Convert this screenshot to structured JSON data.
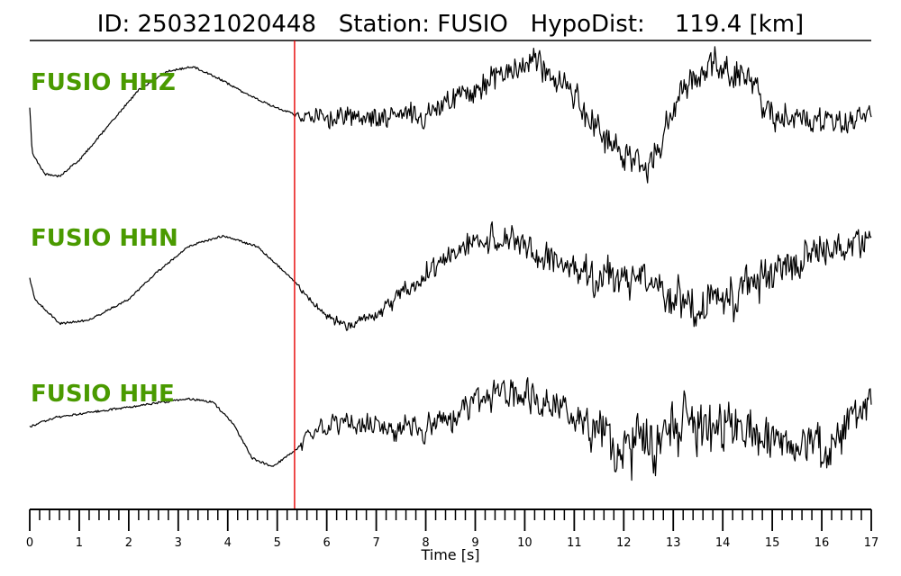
{
  "chart_data": {
    "type": "line",
    "title": "ID: 250321020448   Station: FUSIO   HypoDist:    119.4 [km]",
    "xlabel": "Time [s]",
    "xlim": [
      0,
      17
    ],
    "x_major_ticks": [
      0,
      1,
      2,
      3,
      4,
      5,
      6,
      7,
      8,
      9,
      10,
      11,
      12,
      13,
      14,
      15,
      16,
      17
    ],
    "x_minor_step": 0.2,
    "grid": false,
    "pick_marker": {
      "time": 5.35,
      "color": "#e60000"
    },
    "label_color": "#4a9a00",
    "trace_color": "#000000",
    "series": [
      {
        "name": "FUSIO HHZ",
        "envelope": [
          [
            0.0,
            0.2
          ],
          [
            0.05,
            -0.45
          ],
          [
            0.3,
            -0.75
          ],
          [
            0.6,
            -0.78
          ],
          [
            1.0,
            -0.55
          ],
          [
            1.6,
            -0.05
          ],
          [
            2.2,
            0.45
          ],
          [
            2.8,
            0.72
          ],
          [
            3.3,
            0.78
          ],
          [
            3.8,
            0.62
          ],
          [
            4.3,
            0.42
          ],
          [
            4.8,
            0.25
          ],
          [
            5.35,
            0.1
          ],
          [
            6.0,
            0.05
          ],
          [
            7.0,
            0.05
          ],
          [
            8.0,
            0.1
          ],
          [
            8.8,
            0.4
          ],
          [
            9.6,
            0.75
          ],
          [
            10.3,
            0.85
          ],
          [
            10.9,
            0.45
          ],
          [
            11.5,
            -0.2
          ],
          [
            12.0,
            -0.55
          ],
          [
            12.5,
            -0.65
          ],
          [
            12.8,
            -0.2
          ],
          [
            13.3,
            0.55
          ],
          [
            13.8,
            0.85
          ],
          [
            14.5,
            0.65
          ],
          [
            15.0,
            0.1
          ],
          [
            16.0,
            -0.05
          ],
          [
            17.0,
            0.1
          ]
        ],
        "noise": [
          [
            0,
            0.0
          ],
          [
            5.3,
            0.0
          ],
          [
            5.5,
            0.08
          ],
          [
            6.0,
            0.14
          ],
          [
            8.0,
            0.16
          ],
          [
            9.5,
            0.18
          ],
          [
            13.0,
            0.22
          ],
          [
            17.0,
            0.15
          ]
        ]
      },
      {
        "name": "FUSIO HHN",
        "envelope": [
          [
            0.0,
            -0.05
          ],
          [
            0.1,
            -0.35
          ],
          [
            0.6,
            -0.7
          ],
          [
            1.2,
            -0.65
          ],
          [
            2.0,
            -0.35
          ],
          [
            2.6,
            0.05
          ],
          [
            3.2,
            0.4
          ],
          [
            3.9,
            0.55
          ],
          [
            4.6,
            0.4
          ],
          [
            5.35,
            -0.1
          ],
          [
            5.9,
            -0.55
          ],
          [
            6.5,
            -0.75
          ],
          [
            7.2,
            -0.45
          ],
          [
            8.0,
            0.0
          ],
          [
            8.8,
            0.45
          ],
          [
            9.6,
            0.5
          ],
          [
            10.5,
            0.2
          ],
          [
            11.3,
            -0.05
          ],
          [
            12.2,
            -0.05
          ],
          [
            12.8,
            -0.2
          ],
          [
            13.5,
            -0.5
          ],
          [
            14.0,
            -0.45
          ],
          [
            14.8,
            -0.05
          ],
          [
            15.6,
            0.2
          ],
          [
            16.4,
            0.4
          ],
          [
            17.0,
            0.55
          ]
        ],
        "noise": [
          [
            0,
            0.0
          ],
          [
            5.3,
            0.0
          ],
          [
            5.6,
            0.04
          ],
          [
            6.5,
            0.08
          ],
          [
            8.0,
            0.15
          ],
          [
            9.5,
            0.18
          ],
          [
            12.5,
            0.26
          ],
          [
            14.0,
            0.28
          ],
          [
            17.0,
            0.18
          ]
        ]
      },
      {
        "name": "FUSIO HHE",
        "envelope": [
          [
            0.0,
            0.05
          ],
          [
            0.5,
            0.18
          ],
          [
            1.5,
            0.28
          ],
          [
            2.5,
            0.38
          ],
          [
            3.2,
            0.45
          ],
          [
            3.7,
            0.4
          ],
          [
            4.1,
            0.1
          ],
          [
            4.5,
            -0.4
          ],
          [
            4.9,
            -0.52
          ],
          [
            5.35,
            -0.3
          ],
          [
            5.8,
            0.0
          ],
          [
            6.5,
            0.12
          ],
          [
            7.5,
            0.0
          ],
          [
            8.5,
            0.15
          ],
          [
            9.0,
            0.45
          ],
          [
            9.8,
            0.55
          ],
          [
            10.7,
            0.4
          ],
          [
            11.3,
            0.1
          ],
          [
            11.8,
            -0.1
          ],
          [
            12.4,
            -0.25
          ],
          [
            13.0,
            0.05
          ],
          [
            13.7,
            0.15
          ],
          [
            14.5,
            0.0
          ],
          [
            15.5,
            -0.2
          ],
          [
            16.2,
            -0.3
          ],
          [
            16.7,
            0.2
          ],
          [
            17.0,
            0.45
          ]
        ],
        "noise": [
          [
            0,
            0.0
          ],
          [
            5.3,
            0.0
          ],
          [
            5.5,
            0.08
          ],
          [
            6.5,
            0.16
          ],
          [
            8.5,
            0.18
          ],
          [
            11.0,
            0.2
          ],
          [
            12.0,
            0.4
          ],
          [
            13.0,
            0.42
          ],
          [
            15.0,
            0.3
          ],
          [
            17.0,
            0.25
          ]
        ]
      }
    ]
  }
}
